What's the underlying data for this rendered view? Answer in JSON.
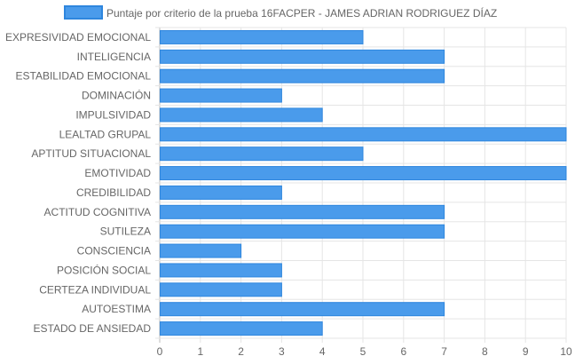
{
  "chart_data": {
    "type": "bar",
    "orientation": "horizontal",
    "legend": {
      "position": "top",
      "label": "Puntaje por criterio de la prueba 16FACPER - JAMES ADRIAN RODRIGUEZ DÍAZ"
    },
    "categories": [
      "EXPRESIVIDAD EMOCIONAL",
      "INTELIGENCIA",
      "ESTABILIDAD EMOCIONAL",
      "DOMINACIÓN",
      "IMPULSIVIDAD",
      "LEALTAD GRUPAL",
      "APTITUD SITUACIONAL",
      "EMOTIVIDAD",
      "CREDIBILIDAD",
      "ACTITUD COGNITIVA",
      "SUTILEZA",
      "CONSCIENCIA",
      "POSICIÓN SOCIAL",
      "CERTEZA INDIVIDUAL",
      "AUTOESTIMA",
      "ESTADO DE ANSIEDAD"
    ],
    "series": [
      {
        "name": "Puntaje por criterio de la prueba 16FACPER - JAMES ADRIAN RODRIGUEZ DÍAZ",
        "values": [
          5,
          7,
          7,
          3,
          4,
          10,
          5,
          10,
          3,
          7,
          7,
          2,
          3,
          3,
          7,
          4
        ]
      }
    ],
    "xlim": [
      0,
      10
    ],
    "xticks": [
      "0",
      "1",
      "2",
      "3",
      "4",
      "5",
      "6",
      "7",
      "8",
      "9",
      "10"
    ],
    "grid": true,
    "colors": {
      "bar_fill": "#4a9beb",
      "bar_stroke": "#2e86de",
      "grid": "#e5e5e5",
      "axis": "#bbbbbb",
      "text": "#666666"
    }
  }
}
